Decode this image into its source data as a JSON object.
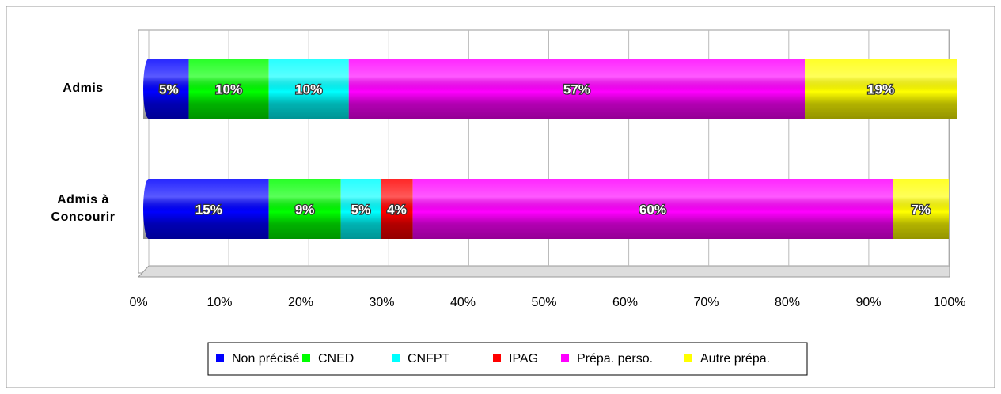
{
  "chart_data": {
    "type": "stacked_bar_h",
    "categories": [
      "Admis",
      "Admis à Concourir"
    ],
    "series": [
      {
        "name": "Non précisé",
        "color": "#0000ff",
        "values": [
          5,
          15
        ],
        "value_labels": [
          "5%",
          "15%"
        ]
      },
      {
        "name": "CNED",
        "color": "#00ff00",
        "values": [
          10,
          9
        ],
        "value_labels": [
          "10%",
          "9%"
        ]
      },
      {
        "name": "CNFPT",
        "color": "#00ffff",
        "values": [
          10,
          5
        ],
        "value_labels": [
          "10%",
          "5%"
        ]
      },
      {
        "name": "IPAG",
        "color": "#ff0000",
        "values": [
          0,
          4
        ],
        "value_labels": [
          null,
          "4%"
        ]
      },
      {
        "name": "Prépa. perso.",
        "color": "#ff00ff",
        "values": [
          57,
          60
        ],
        "value_labels": [
          "57%",
          "60%"
        ]
      },
      {
        "name": "Autre prépa.",
        "color": "#ffff00",
        "values": [
          19,
          7
        ],
        "value_labels": [
          "19%",
          "7%"
        ]
      }
    ],
    "xlim": [
      0,
      100
    ],
    "xticks": [
      {
        "value": 0,
        "label": "0%"
      },
      {
        "value": 10,
        "label": "10%"
      },
      {
        "value": 20,
        "label": "20%"
      },
      {
        "value": 30,
        "label": "30%"
      },
      {
        "value": 40,
        "label": "40%"
      },
      {
        "value": 50,
        "label": "50%"
      },
      {
        "value": 60,
        "label": "60%"
      },
      {
        "value": 70,
        "label": "70%"
      },
      {
        "value": 80,
        "label": "80%"
      },
      {
        "value": 90,
        "label": "90%"
      },
      {
        "value": 100,
        "label": "100%"
      }
    ],
    "grid": true,
    "legend": "bottom"
  }
}
